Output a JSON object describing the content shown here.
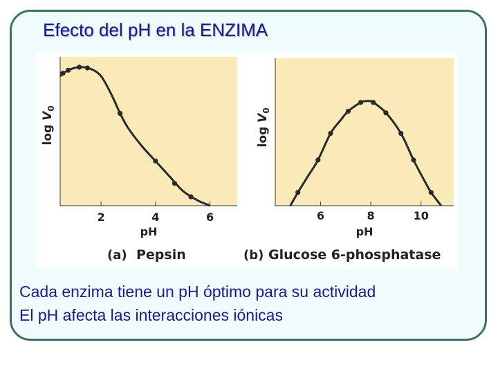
{
  "slide": {
    "title": "Efecto del pH en la ENZIMA",
    "lines": [
      "Cada enzima tiene un pH óptimo para su actividad",
      "El pH afecta las interacciones iónicas"
    ]
  },
  "colors": {
    "plot_background": "#faeab8",
    "curve": "#2a2a2a",
    "title_text": "#1a1a8c",
    "frame_border": "#3f6f6a",
    "frame_fill": "#f0fcfc"
  },
  "chart_data": [
    {
      "type": "line",
      "panel_label": "(a)",
      "caption": "Pepsin",
      "xlabel": "pH",
      "ylabel": "log V0",
      "xlim": [
        0.5,
        7.0
      ],
      "ylim": [
        0,
        1
      ],
      "xticks": [
        2,
        4,
        6
      ],
      "yticks": [],
      "grid": false,
      "points": [
        [
          0.6,
          0.89
        ],
        [
          0.8,
          0.91
        ],
        [
          1.2,
          0.93
        ],
        [
          1.5,
          0.925
        ],
        [
          2.7,
          0.62
        ],
        [
          4.0,
          0.3
        ],
        [
          4.7,
          0.15
        ],
        [
          5.3,
          0.06
        ]
      ],
      "curve": [
        [
          0.5,
          0.87
        ],
        [
          0.8,
          0.91
        ],
        [
          1.2,
          0.93
        ],
        [
          1.6,
          0.92
        ],
        [
          2.0,
          0.87
        ],
        [
          2.4,
          0.74
        ],
        [
          2.7,
          0.62
        ],
        [
          3.0,
          0.52
        ],
        [
          3.5,
          0.4
        ],
        [
          4.0,
          0.3
        ],
        [
          4.5,
          0.2
        ],
        [
          5.0,
          0.1
        ],
        [
          5.5,
          0.04
        ],
        [
          6.0,
          0.0
        ]
      ]
    },
    {
      "type": "line",
      "panel_label": "(b)",
      "caption": "Glucose 6-phosphatase",
      "xlabel": "pH",
      "ylabel": "log V0",
      "xlim": [
        4.2,
        11.3
      ],
      "ylim": [
        0,
        1
      ],
      "xticks": [
        6,
        8,
        10
      ],
      "yticks": [],
      "grid": false,
      "points": [
        [
          5.1,
          0.09
        ],
        [
          5.9,
          0.31
        ],
        [
          6.4,
          0.49
        ],
        [
          7.1,
          0.64
        ],
        [
          7.6,
          0.7
        ],
        [
          8.1,
          0.7
        ],
        [
          8.6,
          0.63
        ],
        [
          9.2,
          0.49
        ],
        [
          9.7,
          0.31
        ],
        [
          10.4,
          0.09
        ]
      ],
      "curve": [
        [
          4.8,
          0.0
        ],
        [
          5.1,
          0.09
        ],
        [
          5.5,
          0.2
        ],
        [
          5.9,
          0.31
        ],
        [
          6.4,
          0.49
        ],
        [
          6.8,
          0.58
        ],
        [
          7.1,
          0.64
        ],
        [
          7.6,
          0.7
        ],
        [
          7.9,
          0.71
        ],
        [
          8.1,
          0.7
        ],
        [
          8.6,
          0.63
        ],
        [
          9.2,
          0.49
        ],
        [
          9.7,
          0.31
        ],
        [
          10.1,
          0.18
        ],
        [
          10.4,
          0.09
        ],
        [
          10.8,
          0.0
        ]
      ]
    }
  ]
}
